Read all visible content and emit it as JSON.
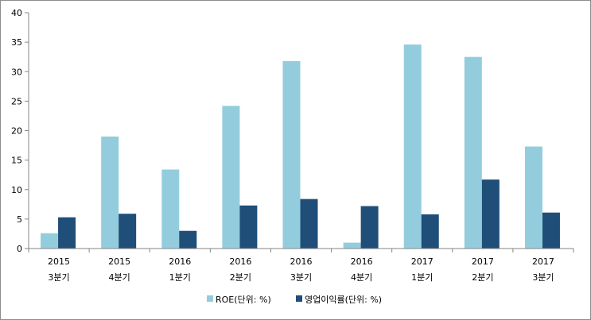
{
  "chart_data": {
    "type": "bar",
    "categories": [
      {
        "year": "2015",
        "quarter": "3분기"
      },
      {
        "year": "2015",
        "quarter": "4분기"
      },
      {
        "year": "2016",
        "quarter": "1분기"
      },
      {
        "year": "2016",
        "quarter": "2분기"
      },
      {
        "year": "2016",
        "quarter": "3분기"
      },
      {
        "year": "2016",
        "quarter": "4분기"
      },
      {
        "year": "2017",
        "quarter": "1분기"
      },
      {
        "year": "2017",
        "quarter": "2분기"
      },
      {
        "year": "2017",
        "quarter": "3분기"
      }
    ],
    "series": [
      {
        "name": "ROE(단위: %)",
        "color": "#93cddd",
        "values": [
          2.6,
          19.0,
          13.4,
          24.2,
          31.8,
          1.0,
          34.6,
          32.5,
          17.3
        ]
      },
      {
        "name": "영업이익률(단위: %)",
        "color": "#1f4e79",
        "values": [
          5.3,
          5.9,
          3.0,
          7.3,
          8.4,
          7.2,
          5.8,
          11.7,
          6.1
        ]
      }
    ],
    "ylim": [
      0,
      40
    ],
    "yticks": [
      0,
      5,
      10,
      15,
      20,
      25,
      30,
      35,
      40
    ],
    "grid": false,
    "legend_position": "bottom"
  }
}
